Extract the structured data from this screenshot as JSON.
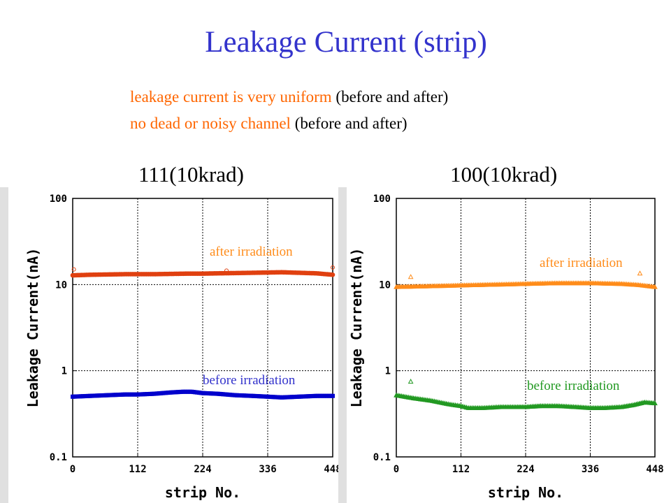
{
  "slide": {
    "title": "Leakage Current (strip)",
    "bullet1_colored": "leakage current is very uniform",
    "bullet1_plain": "(before and after)",
    "bullet2_colored": "no dead or noisy channel",
    "bullet2_plain": "(before and after)"
  },
  "chart_data": [
    {
      "type": "scatter",
      "title": "111(10krad)",
      "xlabel": "strip No.",
      "ylabel": "Leakage Current(nA)",
      "xlim": [
        0,
        448
      ],
      "ylim": [
        0.1,
        100
      ],
      "yscale": "log",
      "grid": true,
      "xticks": [
        "0",
        "112",
        "224",
        "336",
        "448"
      ],
      "yticks": [
        "0.1",
        "1",
        "10",
        "100"
      ],
      "series": [
        {
          "name": "after irradiation",
          "color": "#e04010",
          "marker": "circle",
          "points": [
            [
              0,
              12.8
            ],
            [
              30,
              13.0
            ],
            [
              60,
              13.1
            ],
            [
              90,
              13.2
            ],
            [
              112,
              13.2
            ],
            [
              140,
              13.2
            ],
            [
              170,
              13.3
            ],
            [
              200,
              13.4
            ],
            [
              224,
              13.4
            ],
            [
              250,
              13.5
            ],
            [
              280,
              13.6
            ],
            [
              310,
              13.7
            ],
            [
              336,
              13.8
            ],
            [
              360,
              13.9
            ],
            [
              390,
              13.7
            ],
            [
              420,
              13.5
            ],
            [
              448,
              13.0
            ]
          ],
          "outliers": [
            [
              2,
              15.0
            ],
            [
              265,
              14.5
            ],
            [
              448,
              15.8
            ]
          ]
        },
        {
          "name": "before irradiation",
          "color": "#0000cc",
          "marker": "square",
          "points": [
            [
              0,
              0.5
            ],
            [
              30,
              0.51
            ],
            [
              60,
              0.52
            ],
            [
              90,
              0.53
            ],
            [
              112,
              0.53
            ],
            [
              140,
              0.54
            ],
            [
              170,
              0.56
            ],
            [
              190,
              0.57
            ],
            [
              205,
              0.57
            ],
            [
              224,
              0.55
            ],
            [
              250,
              0.54
            ],
            [
              280,
              0.52
            ],
            [
              310,
              0.51
            ],
            [
              336,
              0.5
            ],
            [
              360,
              0.49
            ],
            [
              390,
              0.5
            ],
            [
              420,
              0.51
            ],
            [
              448,
              0.51
            ]
          ],
          "outliers": []
        }
      ],
      "annotations": [
        "after irradiation",
        "before irradiation"
      ]
    },
    {
      "type": "scatter",
      "title": "100(10krad)",
      "xlabel": "strip No.",
      "ylabel": "Leakage Current(nA)",
      "xlim": [
        0,
        448
      ],
      "ylim": [
        0.1,
        100
      ],
      "yscale": "log",
      "grid": true,
      "xticks": [
        "0",
        "112",
        "224",
        "336",
        "448"
      ],
      "yticks": [
        "0.1",
        "1",
        "10",
        "100"
      ],
      "series": [
        {
          "name": "after irradiation",
          "color": "#ff8c1a",
          "marker": "triangle",
          "points": [
            [
              0,
              9.4
            ],
            [
              30,
              9.5
            ],
            [
              60,
              9.6
            ],
            [
              90,
              9.7
            ],
            [
              112,
              9.8
            ],
            [
              140,
              9.9
            ],
            [
              170,
              10.0
            ],
            [
              200,
              10.1
            ],
            [
              224,
              10.2
            ],
            [
              250,
              10.3
            ],
            [
              280,
              10.4
            ],
            [
              310,
              10.4
            ],
            [
              336,
              10.4
            ],
            [
              360,
              10.3
            ],
            [
              390,
              10.2
            ],
            [
              420,
              9.9
            ],
            [
              448,
              9.4
            ]
          ],
          "outliers": [
            [
              25,
              12.3
            ],
            [
              422,
              13.5
            ]
          ]
        },
        {
          "name": "before irradiation",
          "color": "#229922",
          "marker": "triangle",
          "points": [
            [
              0,
              0.52
            ],
            [
              30,
              0.48
            ],
            [
              60,
              0.45
            ],
            [
              90,
              0.41
            ],
            [
              112,
              0.39
            ],
            [
              125,
              0.37
            ],
            [
              150,
              0.37
            ],
            [
              180,
              0.38
            ],
            [
              210,
              0.38
            ],
            [
              224,
              0.38
            ],
            [
              250,
              0.39
            ],
            [
              280,
              0.39
            ],
            [
              310,
              0.38
            ],
            [
              336,
              0.37
            ],
            [
              360,
              0.37
            ],
            [
              390,
              0.38
            ],
            [
              410,
              0.4
            ],
            [
              430,
              0.43
            ],
            [
              448,
              0.42
            ]
          ],
          "outliers": [
            [
              25,
              0.75
            ]
          ]
        }
      ],
      "annotations": [
        "after irradiation",
        "before irradiation"
      ]
    }
  ]
}
